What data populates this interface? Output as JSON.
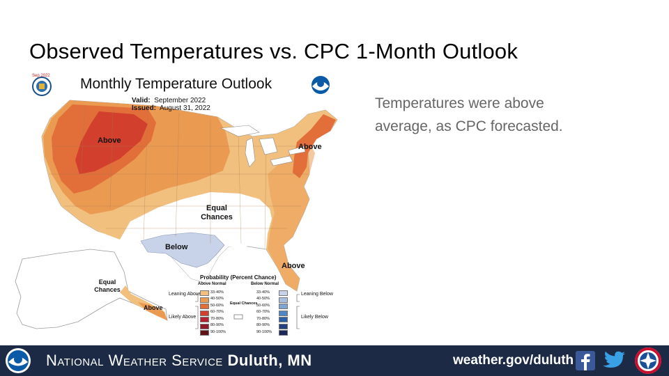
{
  "slide": {
    "title": "Observed Temperatures vs. CPC 1-Month Outlook",
    "side_text": "Temperatures were above average, as CPC forecasted."
  },
  "map": {
    "title": "Monthly Temperature Outlook",
    "badge": "Sep 2022",
    "valid_label": "Valid:",
    "valid_value": "September 2022",
    "issued_label": "Issued:",
    "issued_value": "August 31, 2022",
    "labels": {
      "above_west": "Above",
      "above_northeast": "Above",
      "above_florida": "Above",
      "above_alaska": "Above",
      "equal_chances_central": "Equal Chances",
      "equal_chances_alaska": "Equal Chances",
      "below_texas": "Below"
    },
    "legend": {
      "title": "Probability (Percent Chance)",
      "above_header": "Above Normal",
      "below_header": "Below Normal",
      "leaning_above": "Leaning Above",
      "likely_above": "Likely Above",
      "leaning_below": "Leaning Below",
      "likely_below": "Likely Below",
      "equal_chances": "Equal Chances",
      "bins": [
        "33-40%",
        "40-50%",
        "50-60%",
        "60-70%",
        "70-80%",
        "80-90%",
        "90-100%"
      ],
      "above_colors": [
        "#f2c07e",
        "#eb9a52",
        "#e26f3a",
        "#d23f2c",
        "#b72232",
        "#8f1b2a",
        "#5e1216"
      ],
      "below_colors": [
        "#c8d3ea",
        "#a8bde0",
        "#7ea4d3",
        "#4d86c3",
        "#2e5fa6",
        "#233f80",
        "#1a2658"
      ]
    },
    "region_colors": {
      "light": "#f2c07e",
      "medium": "#eb9a52",
      "strong": "#e26f3a",
      "strongest": "#d23f2c",
      "below": "#c8d3ea"
    }
  },
  "footer": {
    "name_prefix": "National Weather Service ",
    "office": "Duluth, MN",
    "url": "weather.gov/duluth",
    "icons": [
      "noaa-logo-icon",
      "facebook-icon",
      "twitter-icon",
      "nws-logo-icon"
    ]
  }
}
